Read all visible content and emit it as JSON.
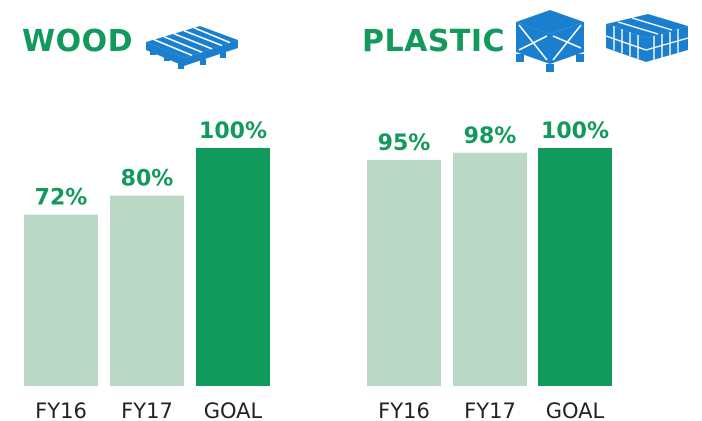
{
  "colors": {
    "bar_light": "#bbd7c6",
    "bar_goal": "#129a5c",
    "value_text": "#129a5c",
    "axis_text": "#222222",
    "icon": "#1b7fcf"
  },
  "panels": [
    {
      "title": "WOOD",
      "icons": [
        "pallet-icon"
      ]
    },
    {
      "title": "PLASTIC",
      "icons": [
        "crate-box-icon",
        "crate-tray-icon"
      ]
    }
  ],
  "chart_data": [
    {
      "type": "bar",
      "title": "WOOD",
      "categories": [
        "FY16",
        "FY17",
        "GOAL"
      ],
      "values": [
        72,
        80,
        100
      ],
      "labels": [
        "72%",
        "80%",
        "100%"
      ],
      "ylim": [
        0,
        100
      ]
    },
    {
      "type": "bar",
      "title": "PLASTIC",
      "categories": [
        "FY16",
        "FY17",
        "GOAL"
      ],
      "values": [
        95,
        98,
        100
      ],
      "labels": [
        "95%",
        "98%",
        "100%"
      ],
      "ylim": [
        0,
        100
      ]
    }
  ]
}
